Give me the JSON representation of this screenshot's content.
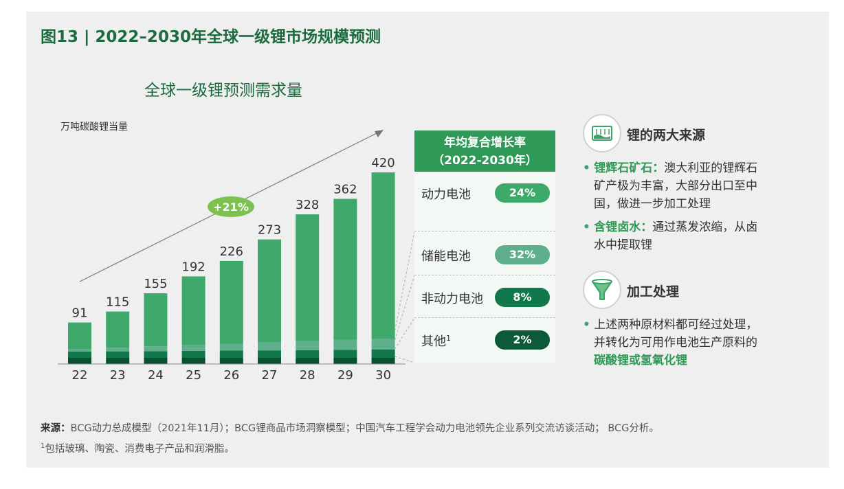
{
  "figure_title": "图13 | 2022–2030年全球一级锂市场规模预测",
  "chart_data": {
    "type": "bar",
    "title": "全球一级锂预测需求量",
    "ylabel": "万吨碳酸锂当量",
    "categories": [
      "22",
      "23",
      "24",
      "25",
      "26",
      "27",
      "28",
      "29",
      "30"
    ],
    "totals": [
      91,
      115,
      155,
      192,
      226,
      273,
      328,
      362,
      420
    ],
    "ylim": [
      0,
      420
    ],
    "trend_label": "+21%",
    "colors": {
      "动力电池": "#3ea96a",
      "储能电池": "#5faf8d",
      "非动力电池": "#10784a",
      "其他": "#0a4f31"
    }
  },
  "cagr": {
    "header_line1": "年均复合增长率",
    "header_line2": "（2022-2030年）",
    "rows": [
      {
        "label": "动力电池",
        "value": "24%",
        "color": "#3ea96a"
      },
      {
        "label": "储能电池",
        "value": "32%",
        "color": "#5fae8c"
      },
      {
        "label": "非动力电池",
        "value": "8%",
        "color": "#10784a"
      },
      {
        "label": "其他",
        "sup": "1",
        "value": "2%",
        "color": "#0c5a37"
      }
    ]
  },
  "sources_section": {
    "title": "锂的两大来源",
    "items": [
      {
        "name": "锂辉石矿石：",
        "lines": [
          "澳大利亚的锂辉石",
          "矿产极为丰富，大部分出口至中",
          "国，做进一步加工处理"
        ]
      },
      {
        "name": "含锂卤水：",
        "lines": [
          "通过蒸发浓缩，从卤",
          "水中提取锂"
        ]
      }
    ]
  },
  "processing_section": {
    "title": "加工处理",
    "lines": [
      "上述两种原材料都可经过处理，",
      "并转化为可用作电池生产原料的"
    ],
    "highlight": "碳酸锂或氢氧化锂"
  },
  "source_note": {
    "label": "来源：",
    "text": "BCG动力总成模型（2021年11月）；BCG锂商品市场洞察模型；中国汽车工程学会动力电池领先企业系列交流访谈活动； BCG分析。"
  },
  "footnote": {
    "sup": "1",
    "text": "包括玻璃、陶瓷、消费电子产品和润滑脂。"
  }
}
